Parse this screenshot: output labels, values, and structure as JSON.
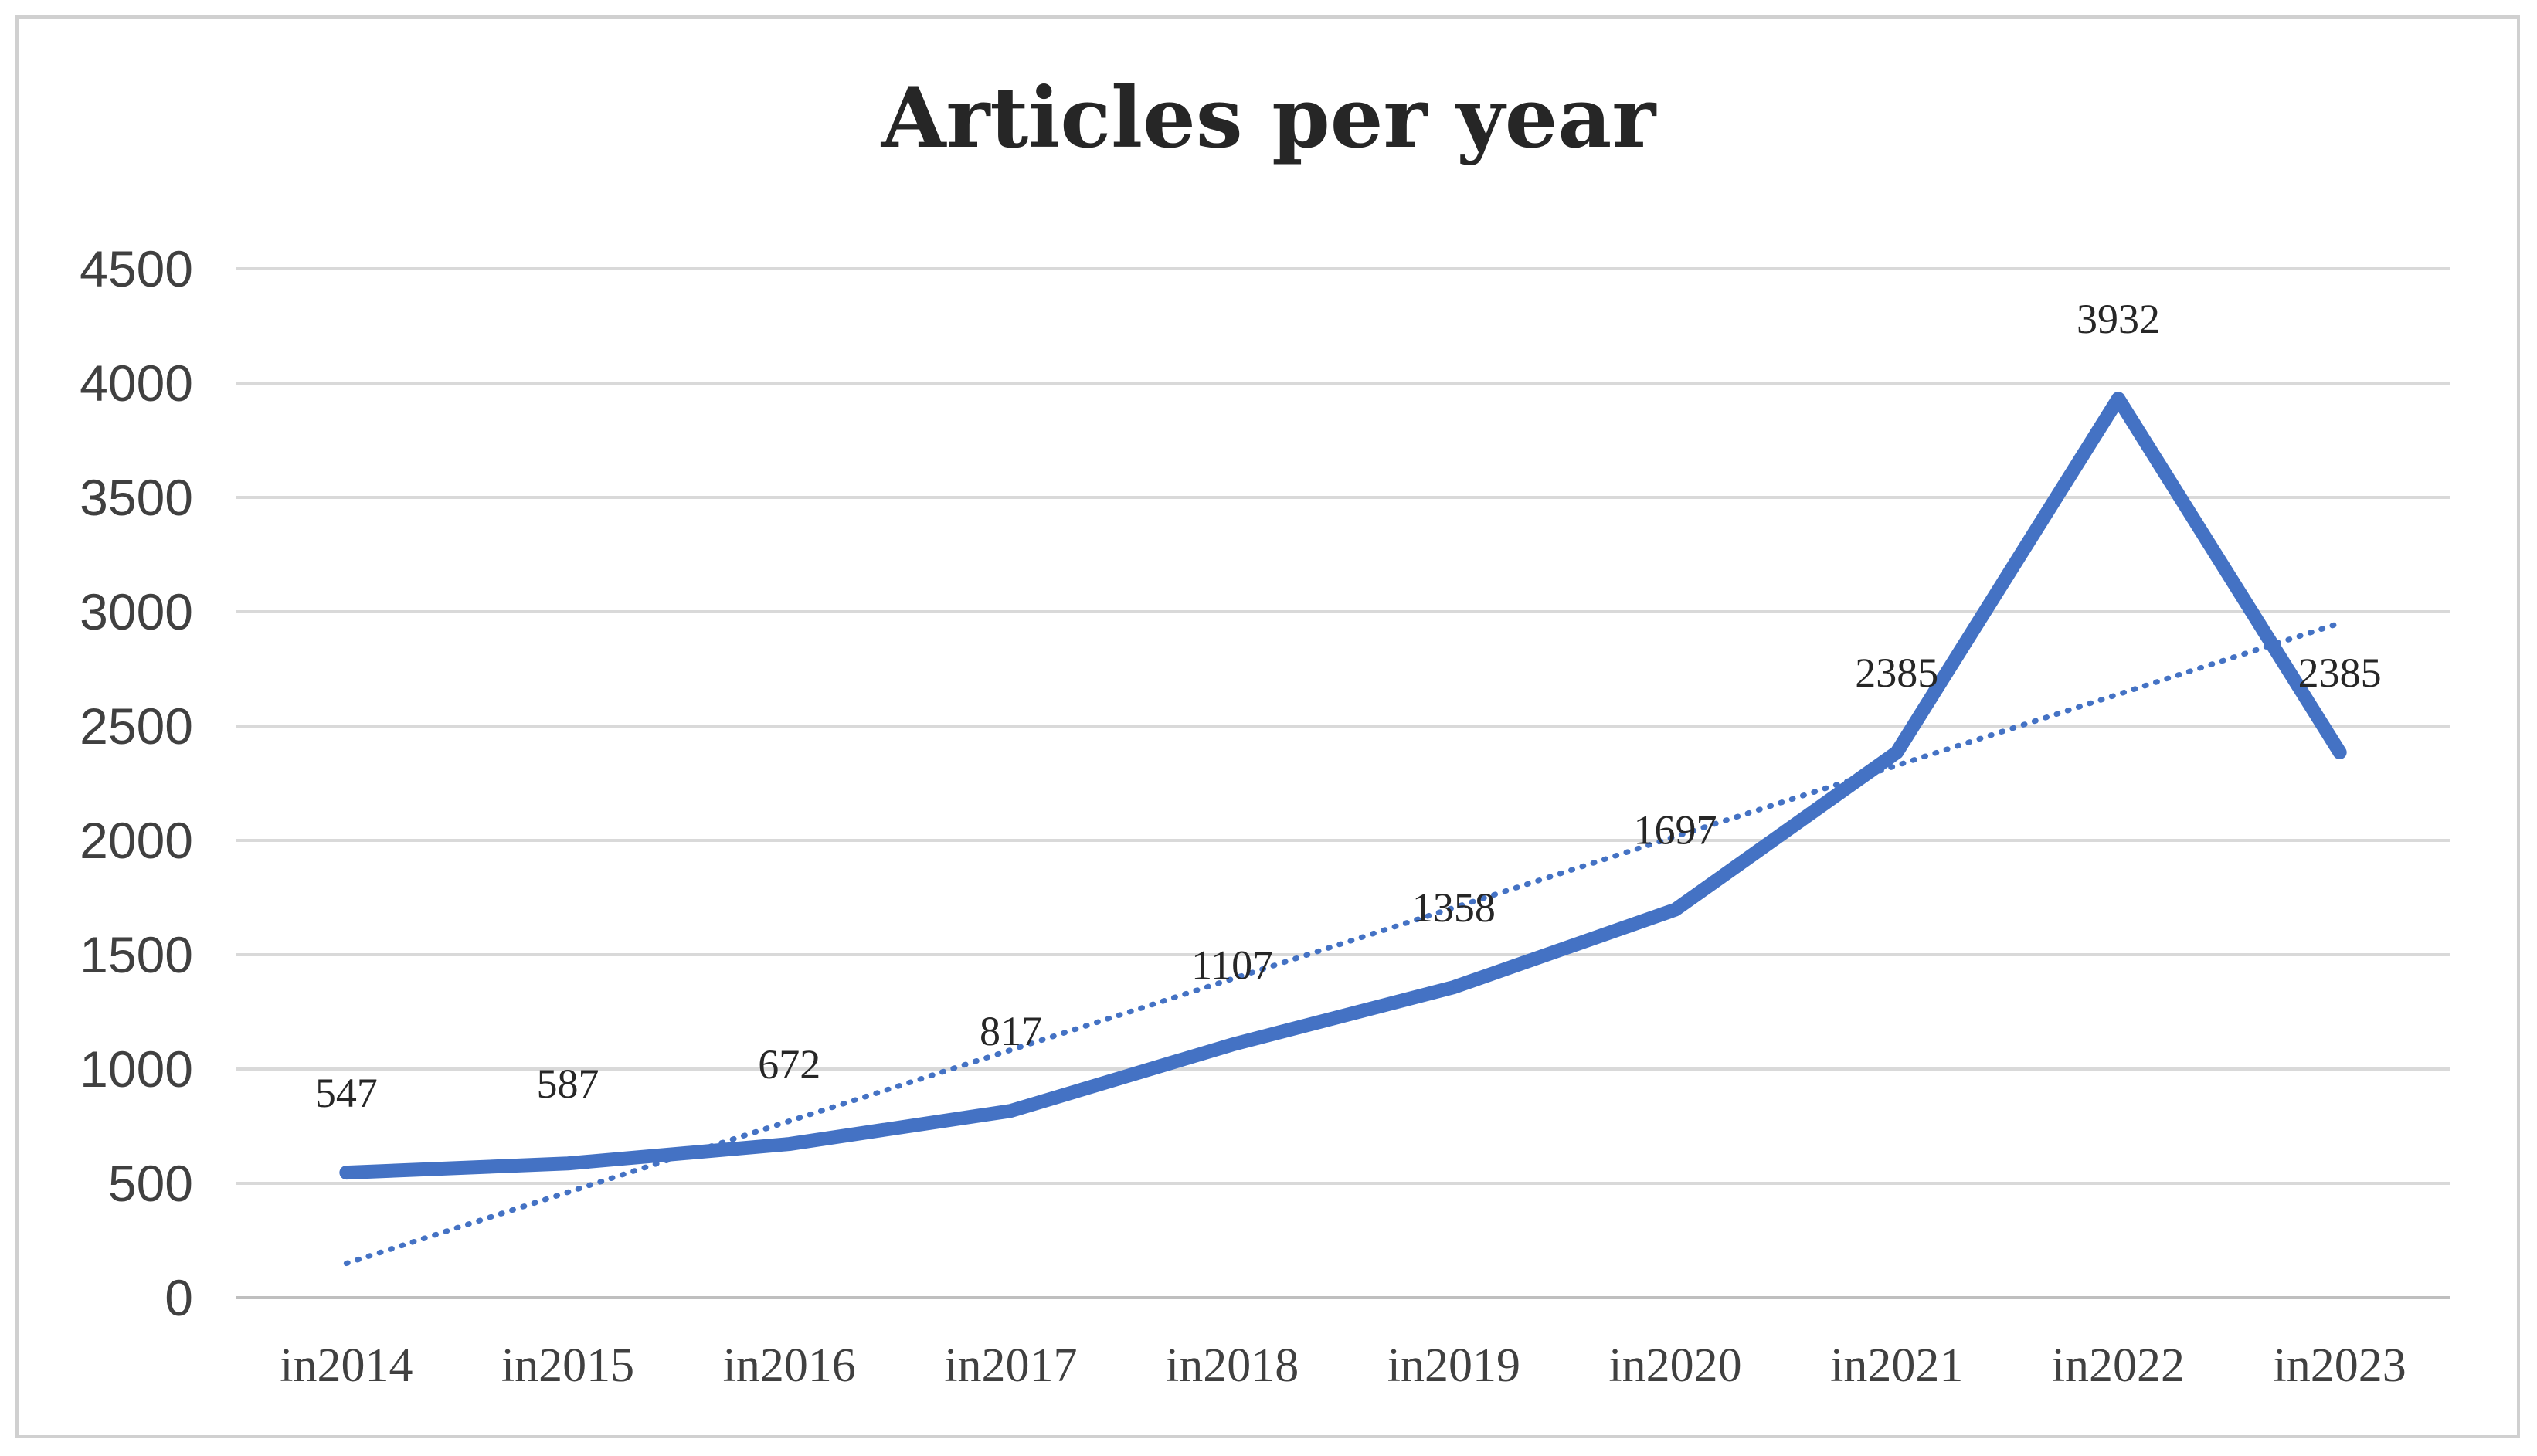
{
  "chart_data": {
    "type": "line",
    "title": "Articles per year",
    "xlabel": "",
    "ylabel": "",
    "categories": [
      "in2014",
      "in2015",
      "in2016",
      "in2017",
      "in2018",
      "in2019",
      "in2020",
      "in2021",
      "in2022",
      "in2023"
    ],
    "series": [
      {
        "values": [
          547,
          587,
          672,
          817,
          1107,
          1358,
          1697,
          2385,
          3932,
          2385
        ],
        "color": "#4472c4",
        "style": "solid"
      }
    ],
    "trendline": {
      "kind": "linear",
      "style": "dotted",
      "color": "#4472c4",
      "start": 150,
      "end": 2950
    },
    "data_labels": [
      "547",
      "587",
      "672",
      "817",
      "1107",
      "1358",
      "1697",
      "2385",
      "3932",
      "2385"
    ],
    "ylim": [
      0,
      4500
    ],
    "yticks": [
      "0",
      "500",
      "1000",
      "1500",
      "2000",
      "2500",
      "3000",
      "3500",
      "4000",
      "4500"
    ],
    "grid": true,
    "legend": "none"
  }
}
